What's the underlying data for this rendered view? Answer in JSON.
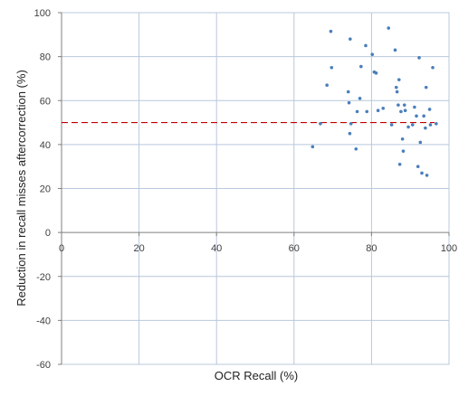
{
  "chart_data": {
    "type": "scatter",
    "title": "",
    "xlabel": "OCR Recall (%)",
    "ylabel": "Reduction in recall misses aftercorrection (%)",
    "xlim": [
      0,
      100
    ],
    "ylim": [
      -60,
      100
    ],
    "x_ticks": [
      0,
      20,
      40,
      60,
      80,
      100
    ],
    "y_ticks": [
      -60,
      -40,
      -20,
      0,
      20,
      40,
      60,
      80,
      100
    ],
    "x_tick_labels": [
      "0",
      "20",
      "40",
      "60",
      "80",
      "100"
    ],
    "y_tick_labels": [
      "-60",
      "-40",
      "-20",
      "0",
      "20",
      "40",
      "60",
      "80",
      "100"
    ],
    "grid": true,
    "reference_line": {
      "y": 50,
      "style": "dashed",
      "color": "#c00000"
    },
    "marker_color": "#4a7ebb",
    "series": [
      {
        "points": [
          [
            64.8,
            39
          ],
          [
            66.8,
            49.5
          ],
          [
            68.5,
            67
          ],
          [
            69.5,
            91.5
          ],
          [
            69.7,
            75
          ],
          [
            74,
            64
          ],
          [
            74.2,
            59
          ],
          [
            74.4,
            45
          ],
          [
            74.5,
            88
          ],
          [
            74.7,
            49.5
          ],
          [
            76,
            38
          ],
          [
            76.3,
            55
          ],
          [
            77,
            61
          ],
          [
            77.3,
            75.5
          ],
          [
            78.5,
            85
          ],
          [
            78.8,
            55
          ],
          [
            80.2,
            81
          ],
          [
            80.7,
            73
          ],
          [
            81.2,
            72.5
          ],
          [
            81.7,
            55.5
          ],
          [
            83,
            56.5
          ],
          [
            84.4,
            93
          ],
          [
            85.2,
            49
          ],
          [
            86.1,
            83
          ],
          [
            86.4,
            66
          ],
          [
            86.6,
            64
          ],
          [
            86.9,
            58
          ],
          [
            87.1,
            69.5
          ],
          [
            87.3,
            31
          ],
          [
            87.6,
            55
          ],
          [
            88,
            42.5
          ],
          [
            88.2,
            37
          ],
          [
            88.5,
            58
          ],
          [
            88.7,
            55.5
          ],
          [
            89.5,
            48
          ],
          [
            90.6,
            49
          ],
          [
            91.1,
            57
          ],
          [
            91.6,
            53
          ],
          [
            92,
            30
          ],
          [
            92.3,
            79.5
          ],
          [
            92.6,
            41
          ],
          [
            93,
            27
          ],
          [
            93.5,
            53
          ],
          [
            93.9,
            47.5
          ],
          [
            94.1,
            66
          ],
          [
            94.3,
            26
          ],
          [
            95,
            56
          ],
          [
            95.2,
            49
          ],
          [
            95.8,
            75
          ],
          [
            96.7,
            49.5
          ]
        ]
      }
    ]
  }
}
